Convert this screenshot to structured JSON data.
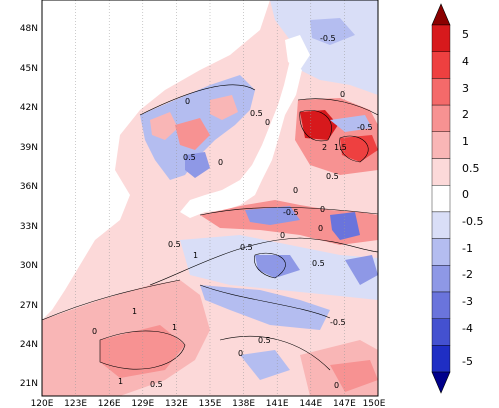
{
  "map": {
    "lat_ticks": [
      "48N",
      "45N",
      "42N",
      "39N",
      "36N",
      "33N",
      "30N",
      "27N",
      "24N",
      "21N"
    ],
    "lon_ticks": [
      "120E",
      "123E",
      "126E",
      "129E",
      "132E",
      "135E",
      "138E",
      "141E",
      "144E",
      "147E",
      "150E"
    ],
    "contour_labels": [
      "-0.5",
      "0",
      "0.5",
      "0",
      "0",
      "0.5",
      "0",
      "-0.5",
      "2",
      "1.5",
      "0.5",
      "0",
      "-0.5",
      "0",
      "0",
      "0.5",
      "0.5",
      "0",
      "0.5",
      "-0.5",
      "0",
      "1",
      "1",
      "0.5",
      "0.5",
      "0",
      "1",
      "1",
      "0"
    ]
  },
  "colorbar": {
    "labels": [
      "5",
      "4",
      "3",
      "2",
      "1",
      "0.5",
      "0",
      "-0.5",
      "-1",
      "-2",
      "-3",
      "-4",
      "-5"
    ],
    "colors": [
      "#d7191c",
      "#ee4040",
      "#f46a6a",
      "#f79292",
      "#f9b6b6",
      "#fcd9d9",
      "#ffffff",
      "#d9def7",
      "#b4bdf0",
      "#8e98e6",
      "#6a74dc",
      "#4451d0",
      "#1f2ec4"
    ],
    "top_color": "#8b0000",
    "bottom_color": "#00008b"
  }
}
